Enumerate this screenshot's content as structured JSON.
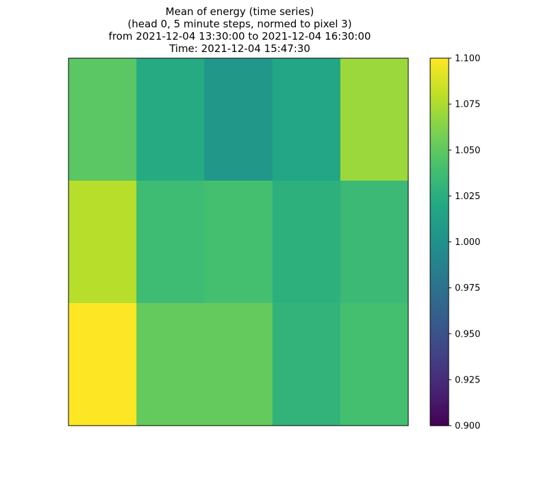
{
  "chart_data": {
    "type": "heatmap",
    "title": [
      "Mean of energy (time series)",
      "(head 0, 5 minute steps, normed to pixel 3)",
      "from 2021-12-04 13:30:00 to 2021-12-04 16:30:00",
      "Time: 2021-12-04 15:47:30"
    ],
    "rows": 3,
    "cols": 5,
    "values": [
      [
        1.048,
        1.022,
        1.005,
        1.018,
        1.07
      ],
      [
        1.078,
        1.037,
        1.04,
        1.027,
        1.035
      ],
      [
        1.1,
        1.052,
        1.052,
        1.03,
        1.04
      ]
    ],
    "colormap": "viridis",
    "vmin": 0.9,
    "vmax": 1.1,
    "colorbar_ticks": [
      0.9,
      0.925,
      0.95,
      0.975,
      1.0,
      1.025,
      1.05,
      1.075,
      1.1
    ],
    "colorbar_tick_labels": [
      "0.900",
      "0.925",
      "0.950",
      "0.975",
      "1.000",
      "1.025",
      "1.050",
      "1.075",
      "1.100"
    ],
    "xticks": [],
    "yticks": []
  }
}
